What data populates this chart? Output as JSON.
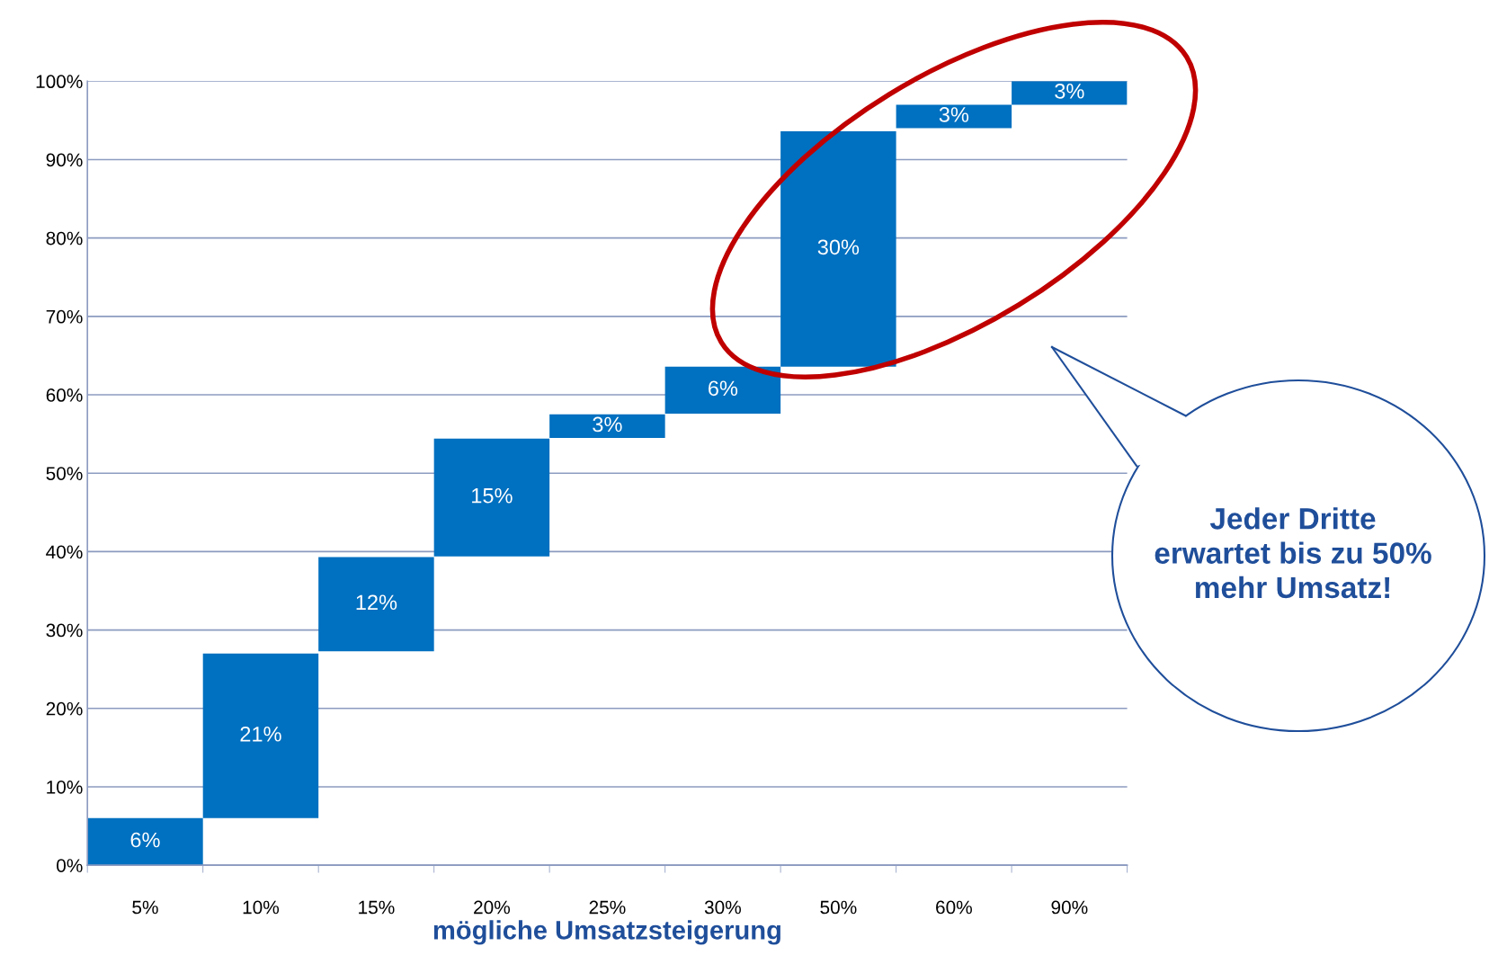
{
  "chart_data": {
    "type": "bar",
    "xlabel": "mögliche Umsatzsteigerung",
    "categories": [
      "5%",
      "10%",
      "15%",
      "20%",
      "25%",
      "30%",
      "50%",
      "60%",
      "90%"
    ],
    "values": [
      6,
      21,
      12,
      15,
      3,
      6,
      30,
      3,
      3
    ],
    "base": [
      0,
      6,
      27.3,
      39.4,
      54.5,
      57.6,
      63.6,
      94,
      97
    ],
    "value_labels": [
      "6%",
      "21%",
      "12%",
      "15%",
      "3%",
      "6%",
      "30%",
      "3%",
      "3%"
    ],
    "color": "#0070c0",
    "ylim": [
      0,
      100
    ],
    "yticks": [
      {
        "value": 0,
        "label": "0%"
      },
      {
        "value": 10,
        "label": "10%"
      },
      {
        "value": 20,
        "label": "20%"
      },
      {
        "value": 30,
        "label": "30%"
      },
      {
        "value": 40,
        "label": "40%"
      },
      {
        "value": 50,
        "label": "50%"
      },
      {
        "value": 60,
        "label": "60%"
      },
      {
        "value": 70,
        "label": "70%"
      },
      {
        "value": 80,
        "label": "80%"
      },
      {
        "value": 90,
        "label": "90%"
      },
      {
        "value": 100,
        "label": "100%"
      }
    ],
    "grid": "y",
    "annotations": [
      "Jeder Dritte\nerwartet bis zu 50%\nmehr Umsatz!"
    ]
  }
}
